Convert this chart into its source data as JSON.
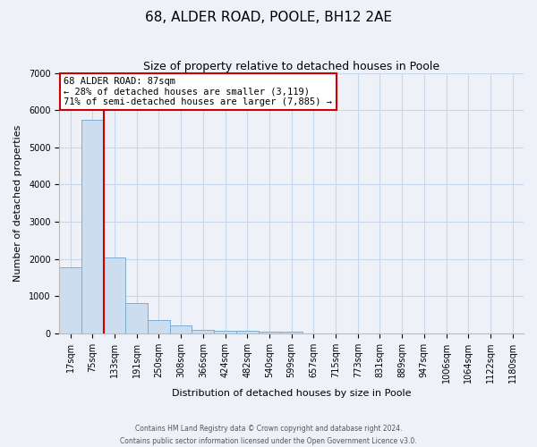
{
  "title": "68, ALDER ROAD, POOLE, BH12 2AE",
  "subtitle": "Size of property relative to detached houses in Poole",
  "xlabel": "Distribution of detached houses by size in Poole",
  "ylabel": "Number of detached properties",
  "bar_labels": [
    "17sqm",
    "75sqm",
    "133sqm",
    "191sqm",
    "250sqm",
    "308sqm",
    "366sqm",
    "424sqm",
    "482sqm",
    "540sqm",
    "599sqm",
    "657sqm",
    "715sqm",
    "773sqm",
    "831sqm",
    "889sqm",
    "947sqm",
    "1006sqm",
    "1064sqm",
    "1122sqm",
    "1180sqm"
  ],
  "bar_values": [
    1780,
    5750,
    2040,
    820,
    360,
    220,
    100,
    80,
    75,
    55,
    50,
    0,
    0,
    0,
    0,
    0,
    0,
    0,
    0,
    0,
    0
  ],
  "bar_color": "#ccddf0",
  "bar_edge_color": "#7aadd4",
  "property_label": "68 ALDER ROAD: 87sqm",
  "annotation_line1": "← 28% of detached houses are smaller (3,119)",
  "annotation_line2": "71% of semi-detached houses are larger (7,885) →",
  "vline_color": "#cc0000",
  "vline_pos": 1.5,
  "annotation_box_color": "#ffffff",
  "annotation_box_edge": "#cc0000",
  "ylim": [
    0,
    7000
  ],
  "yticks": [
    0,
    1000,
    2000,
    3000,
    4000,
    5000,
    6000,
    7000
  ],
  "grid_color": "#c8d8ec",
  "footer_line1": "Contains HM Land Registry data © Crown copyright and database right 2024.",
  "footer_line2": "Contains public sector information licensed under the Open Government Licence v3.0.",
  "bg_color": "#eef2f8",
  "title_fontsize": 11,
  "subtitle_fontsize": 9,
  "xlabel_fontsize": 8,
  "ylabel_fontsize": 8,
  "tick_fontsize": 7,
  "annot_fontsize": 7.5,
  "footer_fontsize": 5.5
}
